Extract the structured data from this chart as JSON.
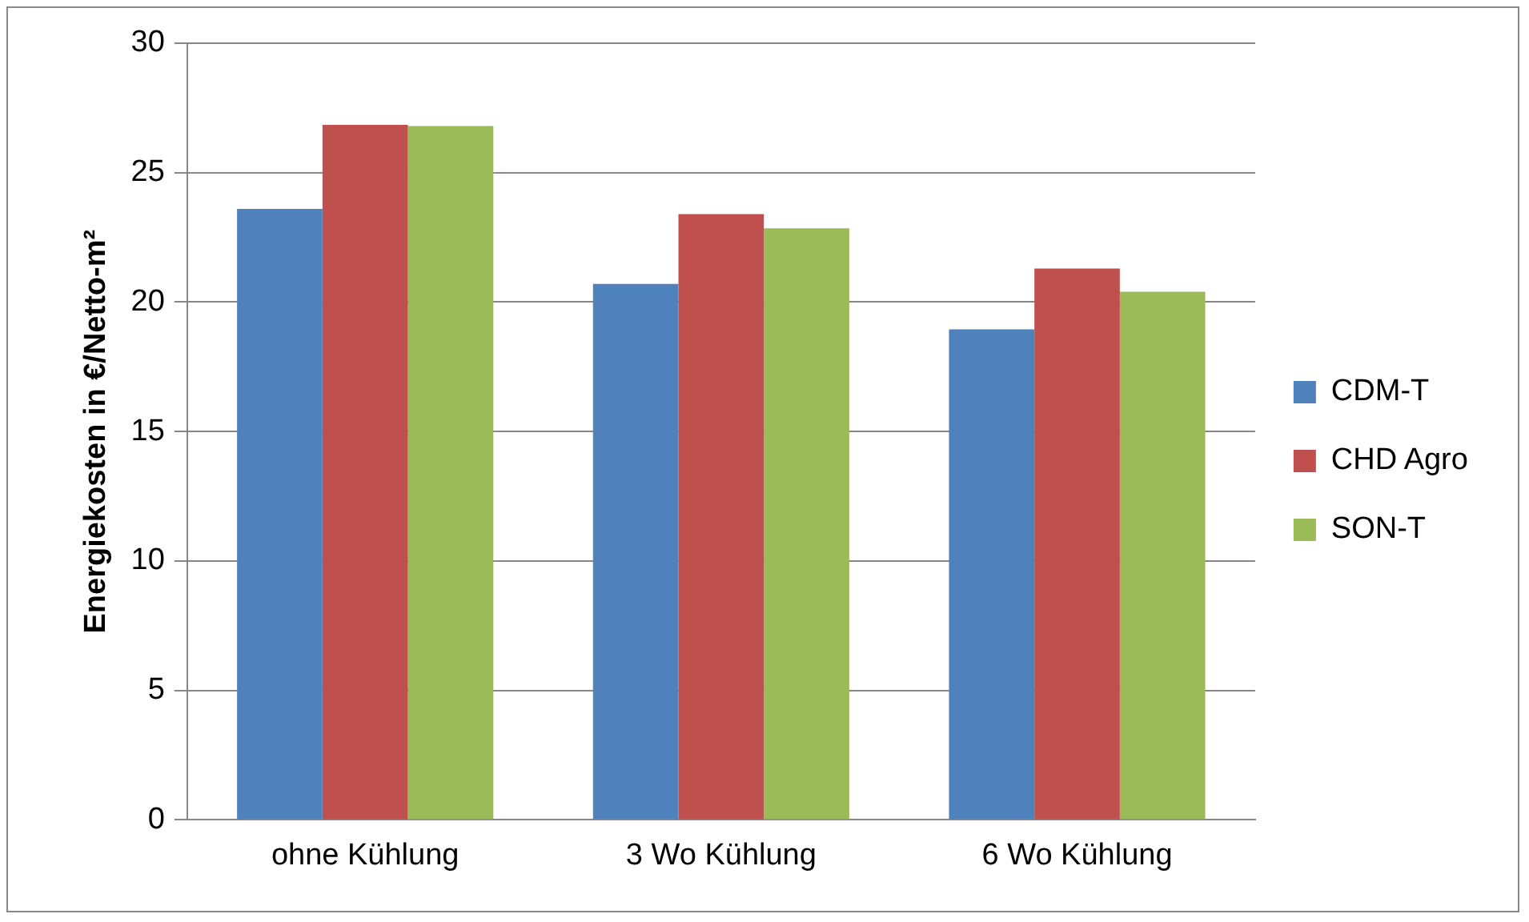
{
  "chart_data": {
    "type": "bar",
    "ylabel": "Energiekosten in €/Netto-m²",
    "categories": [
      "ohne Kühlung",
      "3 Wo Kühlung",
      "6 Wo Kühlung"
    ],
    "series": [
      {
        "name": "CDM-T",
        "color": "#4f81bd",
        "values": [
          23.6,
          20.7,
          18.95
        ]
      },
      {
        "name": "CHD Agro",
        "color": "#c0504d",
        "values": [
          26.85,
          23.4,
          21.3
        ]
      },
      {
        "name": "SON-T",
        "color": "#9bbb59",
        "values": [
          26.8,
          22.85,
          20.4
        ]
      }
    ],
    "ylim": [
      0,
      30
    ],
    "yticks": [
      0,
      5,
      10,
      15,
      20,
      25,
      30
    ],
    "grid": "y",
    "legend": "right"
  }
}
